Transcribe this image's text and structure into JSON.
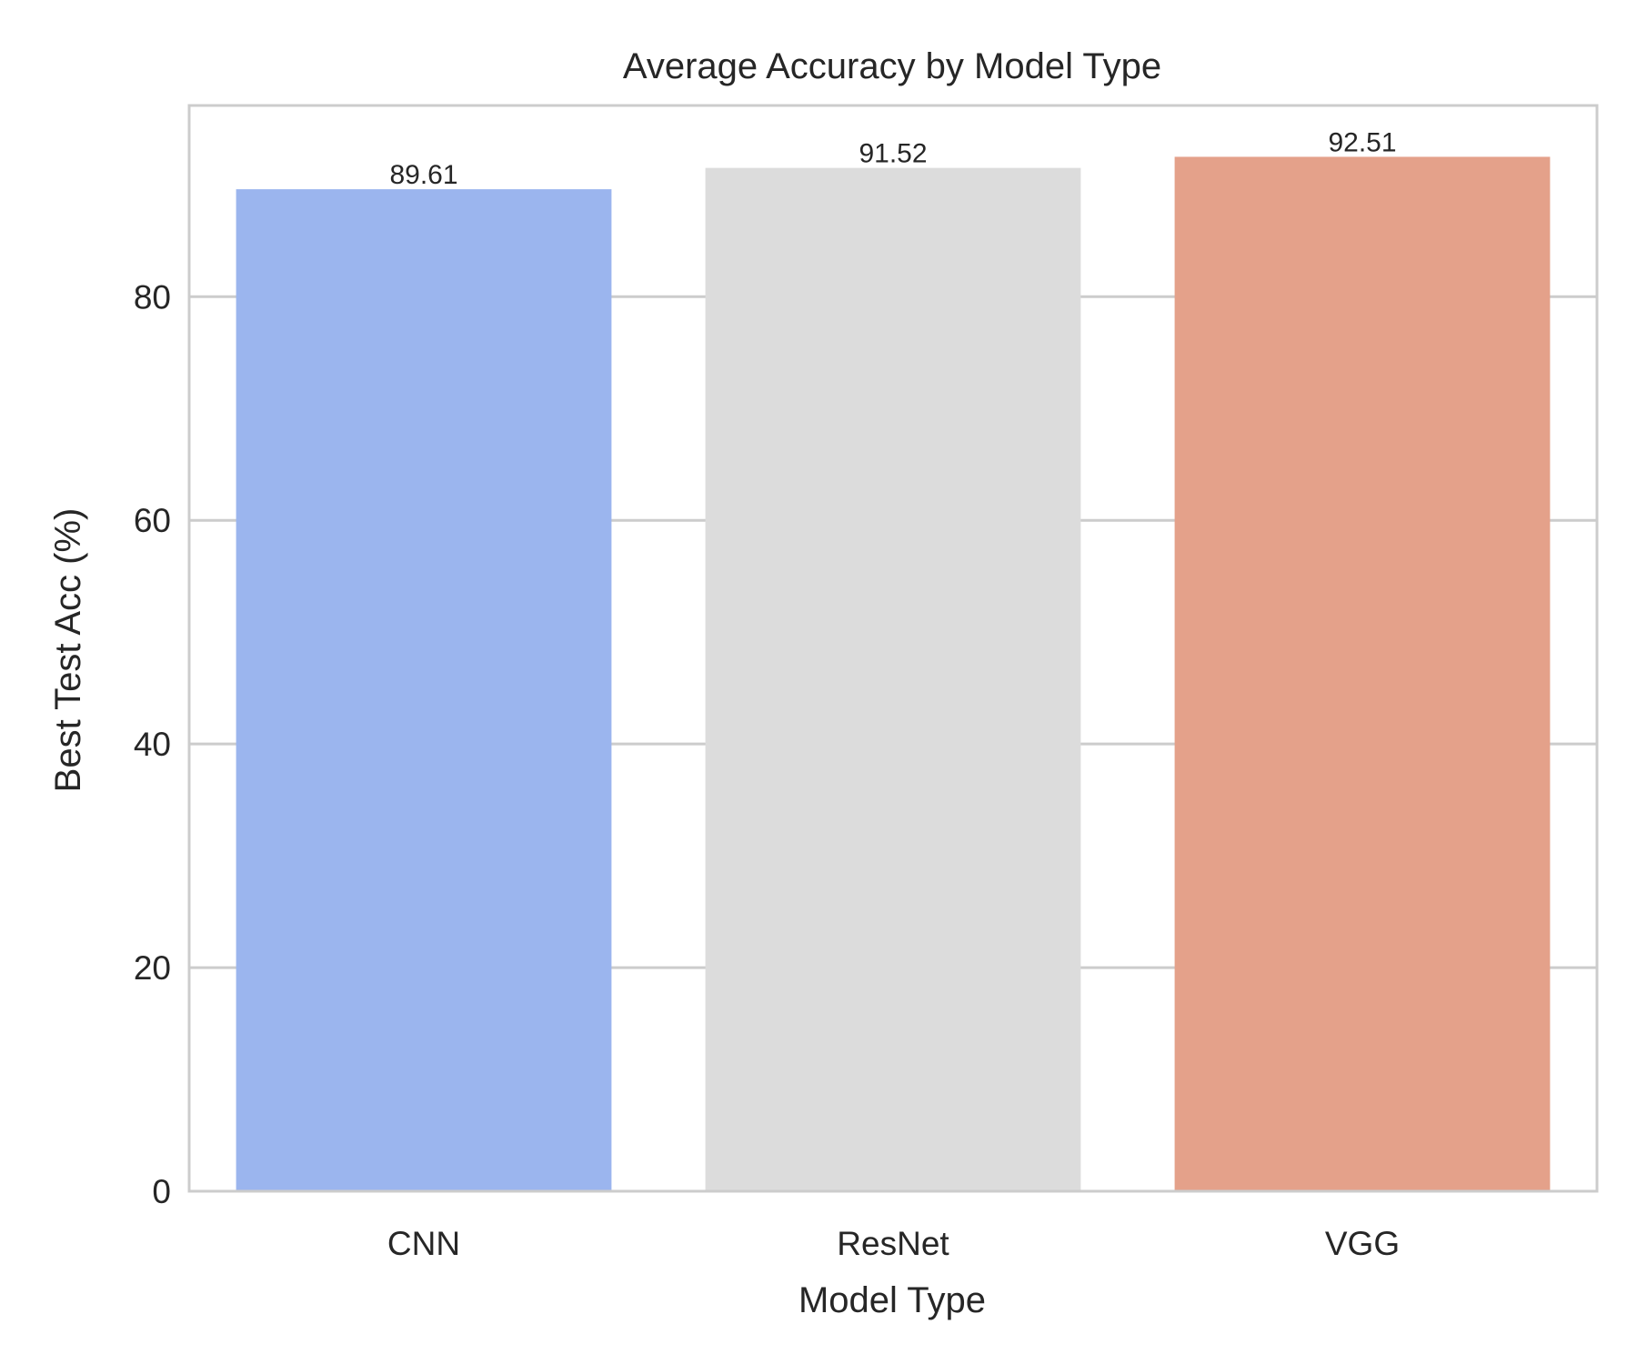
{
  "chart_data": {
    "type": "bar",
    "title": "Average Accuracy by Model Type",
    "xlabel": "Model Type",
    "ylabel": "Best Test Acc (%)",
    "categories": [
      "CNN",
      "ResNet",
      "VGG"
    ],
    "values": [
      89.61,
      91.52,
      92.51
    ],
    "data_labels": [
      "89.61",
      "91.52",
      "92.51"
    ],
    "colors": [
      "#9bb5ee",
      "#dcdcdc",
      "#e4a18a"
    ],
    "ylim": [
      0,
      97.1
    ],
    "yticks": [
      0,
      20,
      40,
      60,
      80
    ],
    "grid": true,
    "grid_color": "#cccccc",
    "frame_color": "#cccccc",
    "legend": "none"
  }
}
